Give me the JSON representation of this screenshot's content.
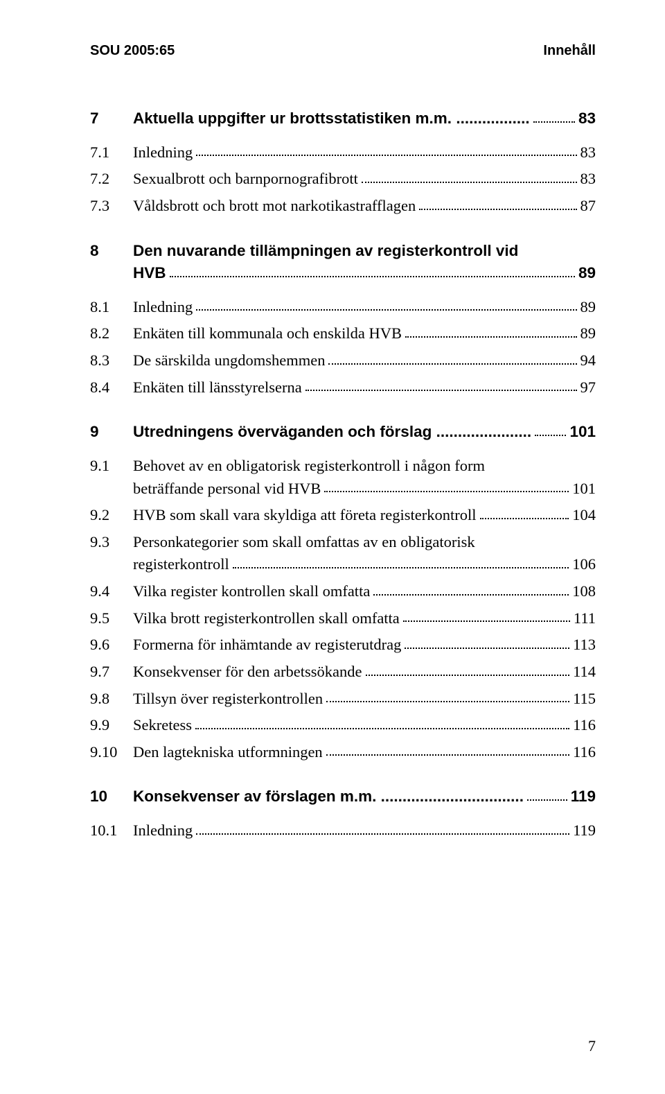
{
  "header": {
    "left": "SOU 2005:65",
    "right": "Innehåll"
  },
  "page_number": "7",
  "toc": [
    {
      "type": "chapter",
      "num": "7",
      "title": "Aktuella uppgifter ur brottsstatistiken m.m. .................",
      "page": "83"
    },
    {
      "type": "sub",
      "num": "7.1",
      "title": "Inledning",
      "page": "83"
    },
    {
      "type": "sub",
      "num": "7.2",
      "title": "Sexualbrott och barnpornografibrott",
      "page": "83"
    },
    {
      "type": "sub",
      "num": "7.3",
      "title": "Våldsbrott och brott mot narkotikastrafflagen",
      "page": "87"
    },
    {
      "type": "chapter",
      "num": "8",
      "title_lines": [
        "Den nuvarande tillämpningen av registerkontroll vid",
        "HVB"
      ],
      "page": "89"
    },
    {
      "type": "sub",
      "num": "8.1",
      "title": "Inledning",
      "page": "89"
    },
    {
      "type": "sub",
      "num": "8.2",
      "title": "Enkäten till kommunala och enskilda HVB",
      "page": "89"
    },
    {
      "type": "sub",
      "num": "8.3",
      "title": "De särskilda ungdomshemmen",
      "page": "94"
    },
    {
      "type": "sub",
      "num": "8.4",
      "title": "Enkäten till länsstyrelserna",
      "page": "97"
    },
    {
      "type": "chapter",
      "num": "9",
      "title": "Utredningens överväganden och förslag ......................",
      "page": "101"
    },
    {
      "type": "sub",
      "num": "9.1",
      "title_lines": [
        "Behovet av en obligatorisk registerkontroll i någon form",
        "beträffande personal vid HVB"
      ],
      "page": "101"
    },
    {
      "type": "sub",
      "num": "9.2",
      "title": "HVB som skall vara skyldiga att företa registerkontroll",
      "page": "104"
    },
    {
      "type": "sub",
      "num": "9.3",
      "title_lines": [
        "Personkategorier som skall omfattas av en obligatorisk",
        "registerkontroll"
      ],
      "page": "106"
    },
    {
      "type": "sub",
      "num": "9.4",
      "title": "Vilka register kontrollen skall omfatta",
      "page": "108"
    },
    {
      "type": "sub",
      "num": "9.5",
      "title": "Vilka brott registerkontrollen skall omfatta",
      "page": "111"
    },
    {
      "type": "sub",
      "num": "9.6",
      "title": "Formerna för inhämtande av registerutdrag",
      "page": "113"
    },
    {
      "type": "sub",
      "num": "9.7",
      "title": "Konsekvenser för den arbetssökande",
      "page": "114"
    },
    {
      "type": "sub",
      "num": "9.8",
      "title": "Tillsyn över registerkontrollen",
      "page": "115"
    },
    {
      "type": "sub",
      "num": "9.9",
      "title": "Sekretess",
      "page": "116"
    },
    {
      "type": "sub",
      "num": "9.10",
      "title": "Den lagtekniska utformningen",
      "page": "116"
    },
    {
      "type": "chapter",
      "num": "10",
      "title": "Konsekvenser av förslagen m.m. .................................",
      "page": "119"
    },
    {
      "type": "sub",
      "num": "10.1",
      "title": "Inledning",
      "page": "119"
    }
  ]
}
